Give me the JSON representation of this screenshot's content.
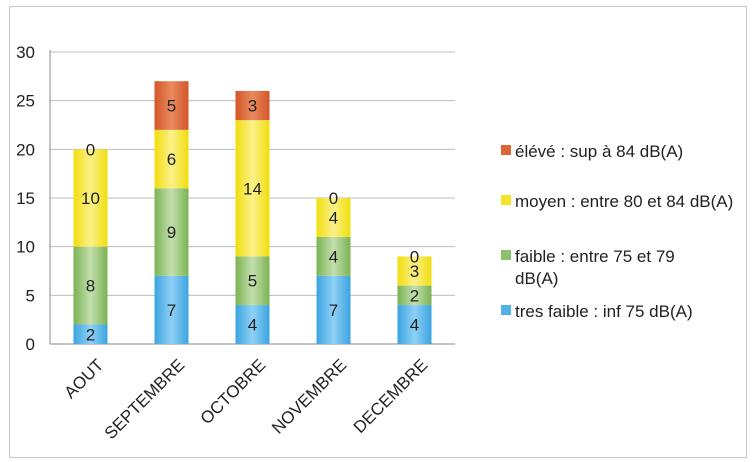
{
  "chart_data": {
    "type": "bar",
    "stacked": true,
    "categories": [
      "AOUT",
      "SEPTEMBRE",
      "OCTOBRE",
      "NOVEMBRE",
      "DECEMBRE"
    ],
    "series": [
      {
        "name": "tres faible : inf 75 dB(A)",
        "values": [
          2,
          7,
          4,
          7,
          4
        ],
        "color": "#4fb3e8"
      },
      {
        "name": "faible : entre 75 et 79 dB(A)",
        "values": [
          8,
          9,
          5,
          4,
          2
        ],
        "color": "#8dc06a"
      },
      {
        "name": "moyen : entre 80 et 84 dB(A)",
        "values": [
          10,
          6,
          14,
          4,
          3
        ],
        "color": "#f5e326"
      },
      {
        "name": "élévé : sup à 84 dB(A)",
        "values": [
          0,
          5,
          3,
          0,
          0
        ],
        "color": "#dd6435"
      }
    ],
    "legend_order": [
      3,
      2,
      1,
      0
    ],
    "legend_position": "right",
    "ylim": [
      0,
      30
    ],
    "yticks": [
      0,
      5,
      10,
      15,
      20,
      25,
      30
    ],
    "grid": true,
    "title": "",
    "xlabel": "",
    "ylabel": ""
  }
}
